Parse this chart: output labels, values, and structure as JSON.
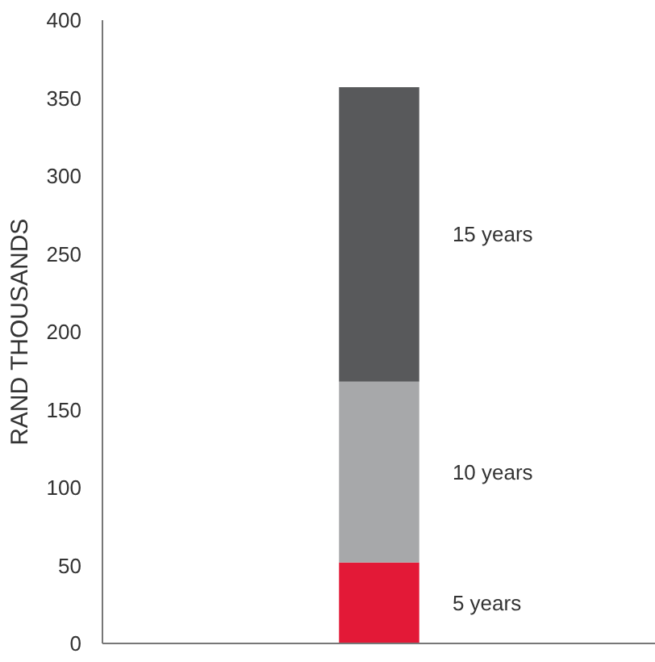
{
  "chart_data": {
    "type": "bar",
    "stacked": true,
    "ylabel": "RAND THOUSANDS",
    "categories": [
      null
    ],
    "series": [
      {
        "name": "5 years",
        "color": "#e31937",
        "values": [
          52
        ]
      },
      {
        "name": "10 years",
        "color": "#a7a8aa",
        "values": [
          116
        ]
      },
      {
        "name": "15 years",
        "color": "#58595b",
        "values": [
          189
        ]
      }
    ],
    "ylim": [
      0,
      400
    ],
    "yticks": [
      0,
      50,
      100,
      150,
      200,
      250,
      300,
      350,
      400
    ],
    "tick_labels": "y",
    "grid": false,
    "legend": false
  }
}
